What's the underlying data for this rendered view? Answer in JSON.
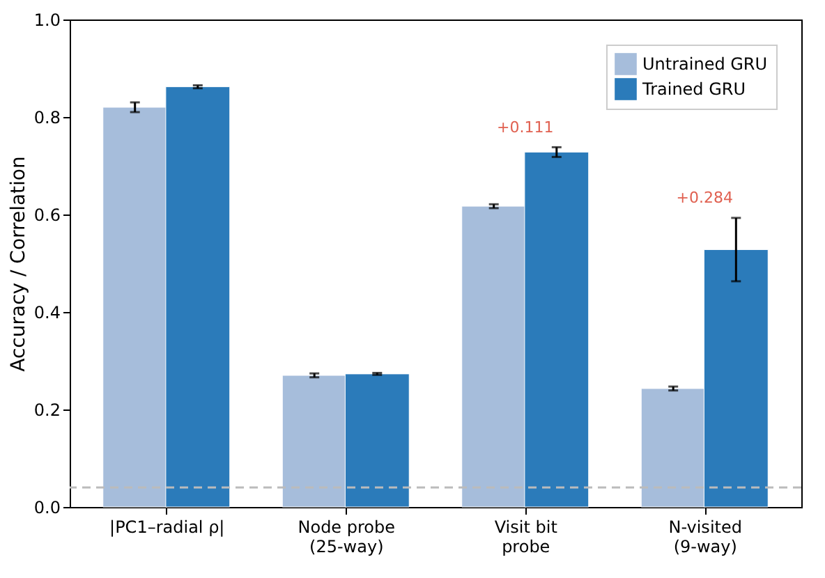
{
  "chart_data": {
    "type": "bar",
    "ylabel": "Accuracy / Correlation",
    "categories": [
      "|PC1–radial ρ|",
      "Node probe\n(25-way)",
      "Visit bit\nprobe",
      "N-visited\n(9-way)"
    ],
    "series": [
      {
        "name": "Untrained GRU",
        "color": "#a6bddb",
        "values": [
          0.82,
          0.27,
          0.617,
          0.243
        ],
        "errors": [
          0.01,
          0.004,
          0.004,
          0.004
        ]
      },
      {
        "name": "Trained GRU",
        "color": "#2b7bba",
        "values": [
          0.862,
          0.273,
          0.728,
          0.528
        ],
        "errors": [
          0.003,
          0.002,
          0.01,
          0.065
        ]
      }
    ],
    "ylim": [
      0,
      1.0
    ],
    "yticks": [
      {
        "value": 0,
        "label": "0.0"
      },
      {
        "value": 0.2,
        "label": "0.2"
      },
      {
        "value": 0.4,
        "label": "0.4"
      },
      {
        "value": 0.6,
        "label": "0.6"
      },
      {
        "value": 0.8,
        "label": "0.8"
      },
      {
        "value": 1,
        "label": "1.0"
      }
    ],
    "ref_lines": [
      {
        "axis": "y",
        "value": 0.04,
        "color": "#bbbbbb",
        "line_style": "dashed"
      }
    ],
    "annotations": [
      "+0.111",
      "+0.284"
    ],
    "grid": false,
    "legend": "top right"
  }
}
